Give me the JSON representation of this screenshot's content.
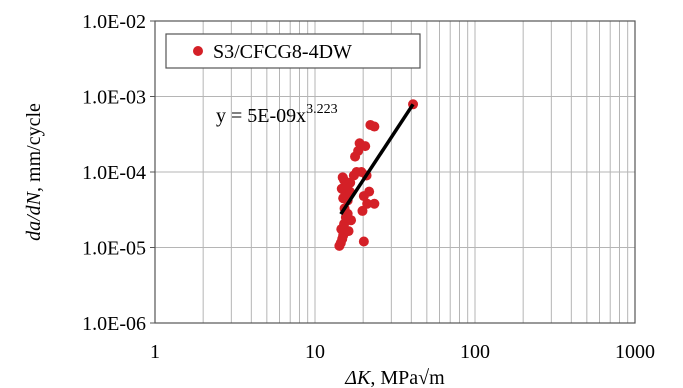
{
  "chart_data": {
    "type": "scatter",
    "title": "",
    "xlabel_italic": "ΔK",
    "xlabel_rest": ", MPa√m",
    "ylabel_italic": "da/dN",
    "ylabel_rest": ", mm/cycle",
    "x_scale": "log",
    "y_scale": "log",
    "xlim": [
      1,
      1000
    ],
    "ylim": [
      1e-06,
      0.01
    ],
    "x_ticks": [
      1,
      10,
      100,
      1000
    ],
    "x_tick_labels": [
      "1",
      "10",
      "100",
      "1000"
    ],
    "y_ticks": [
      1e-06,
      1e-05,
      0.0001,
      0.001,
      0.01
    ],
    "y_tick_labels": [
      "1.0E-06",
      "1.0E-05",
      "1.0E-04",
      "1.0E-03",
      "1.0E-02"
    ],
    "grid": true,
    "legend_position": "top-left",
    "series": [
      {
        "name": "S3/CFCG8-4DW",
        "color": "#d42027",
        "marker": "circle",
        "points": [
          [
            14.2,
            1.05e-05
          ],
          [
            14.5,
            1.15e-05
          ],
          [
            14.8,
            1.3e-05
          ],
          [
            15.0,
            1.45e-05
          ],
          [
            14.6,
            1.75e-05
          ],
          [
            15.2,
            2.05e-05
          ],
          [
            15.6,
            2.5e-05
          ],
          [
            16.0,
            2.8e-05
          ],
          [
            15.3,
            3.3e-05
          ],
          [
            16.2,
            1.65e-05
          ],
          [
            16.8,
            2.3e-05
          ],
          [
            15.0,
            4.5e-05
          ],
          [
            15.5,
            5e-05
          ],
          [
            16.5,
            5.5e-05
          ],
          [
            14.7,
            6e-05
          ],
          [
            15.8,
            6.5e-05
          ],
          [
            16.6,
            7.2e-05
          ],
          [
            15.2,
            7.8e-05
          ],
          [
            14.9,
            8.5e-05
          ],
          [
            17.5,
            9e-05
          ],
          [
            18.2,
            0.0001
          ],
          [
            19.5,
            0.0001
          ],
          [
            21.0,
            9e-05
          ],
          [
            21.8,
            5.5e-05
          ],
          [
            21.2,
            3.8e-05
          ],
          [
            20.2,
            4.8e-05
          ],
          [
            23.5,
            3.8e-05
          ],
          [
            19.8,
            3.05e-05
          ],
          [
            20.2,
            1.2e-05
          ],
          [
            17.8,
            0.00016
          ],
          [
            18.6,
            0.00019
          ],
          [
            19.0,
            0.00024
          ],
          [
            20.6,
            0.00022
          ],
          [
            22.2,
            0.00042
          ],
          [
            23.5,
            0.0004
          ],
          [
            16.0,
            4.2e-05
          ]
        ]
      }
    ],
    "trendline": {
      "equation_base": "y = 5E-09x",
      "equation_exponent": "3.223",
      "coefficient": 5e-09,
      "exponent": 3.223,
      "x_range": [
        14.5,
        41
      ]
    }
  }
}
